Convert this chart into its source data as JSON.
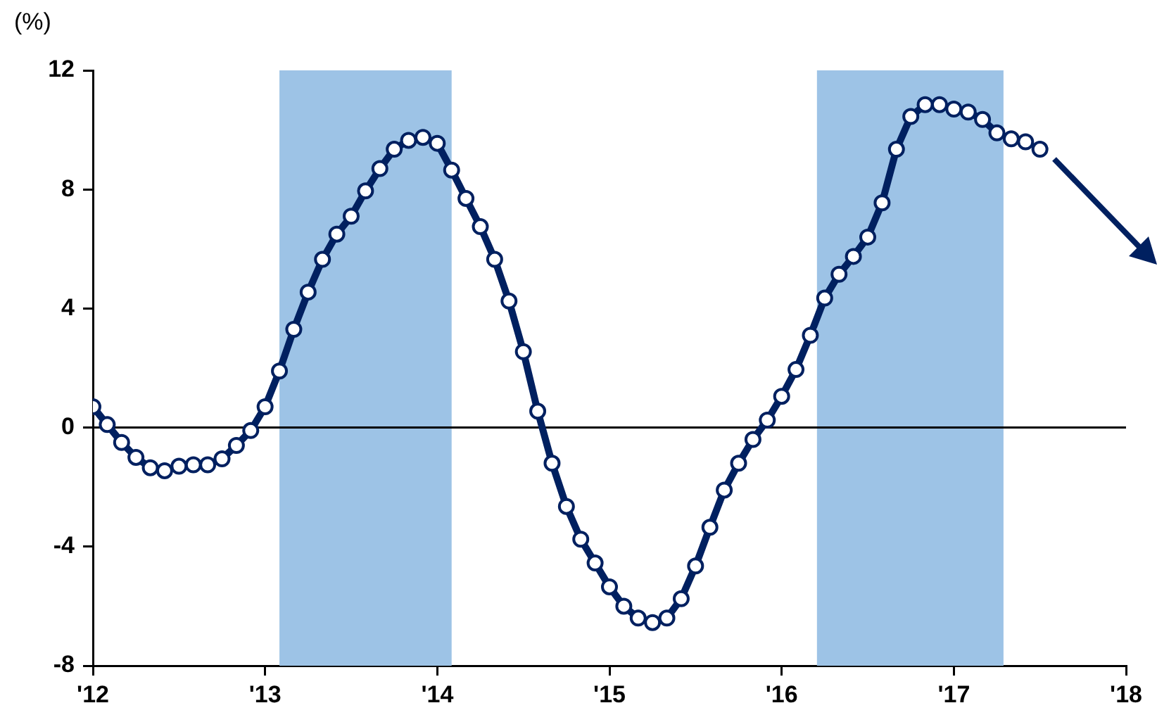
{
  "chart_data": {
    "type": "line",
    "ylabel": "(%)",
    "xlim": [
      "2012",
      "2018"
    ],
    "xticks": [
      {
        "value": "2012",
        "label": "'12"
      },
      {
        "value": "2013",
        "label": "'13"
      },
      {
        "value": "2014",
        "label": "'14"
      },
      {
        "value": "2015",
        "label": "'15"
      },
      {
        "value": "2016",
        "label": "'16"
      },
      {
        "value": "2017",
        "label": "'17"
      },
      {
        "value": "2018",
        "label": "'18"
      }
    ],
    "ylim": [
      -8,
      12
    ],
    "yticks": [
      -8,
      -4,
      0,
      4,
      8,
      12
    ],
    "grid": false,
    "legend": false,
    "marker": "circle",
    "line_style": "solid",
    "ref_lines": [
      {
        "axis": "y",
        "value": 0,
        "color": "#000000"
      }
    ],
    "bands": [
      {
        "axis": "x",
        "from": "2013-02",
        "to": "2014-02",
        "color": "#9dc3e6"
      },
      {
        "axis": "x",
        "from": "2016-03-15",
        "to": "2017-04-15",
        "color": "#9dc3e6"
      }
    ],
    "series": [
      {
        "type": "line",
        "color": "#002060",
        "x": [
          "2012-01",
          "2012-02",
          "2012-03",
          "2012-04",
          "2012-05",
          "2012-06",
          "2012-07",
          "2012-08",
          "2012-09",
          "2012-10",
          "2012-11",
          "2012-12",
          "2013-01",
          "2013-02",
          "2013-03",
          "2013-04",
          "2013-05",
          "2013-06",
          "2013-07",
          "2013-08",
          "2013-09",
          "2013-10",
          "2013-11",
          "2013-12",
          "2014-01",
          "2014-02",
          "2014-03",
          "2014-04",
          "2014-05",
          "2014-06",
          "2014-07",
          "2014-08",
          "2014-09",
          "2014-10",
          "2014-11",
          "2014-12",
          "2015-01",
          "2015-02",
          "2015-03",
          "2015-04",
          "2015-05",
          "2015-06",
          "2015-07",
          "2015-08",
          "2015-09",
          "2015-10",
          "2015-11",
          "2015-12",
          "2016-01",
          "2016-02",
          "2016-03",
          "2016-04",
          "2016-05",
          "2016-06",
          "2016-07",
          "2016-08",
          "2016-09",
          "2016-10",
          "2016-11",
          "2016-12",
          "2017-01",
          "2017-02",
          "2017-03",
          "2017-04"
        ],
        "values": [
          0.7,
          0.1,
          -0.5,
          -1.0,
          -1.35,
          -1.45,
          -1.3,
          -1.25,
          -1.25,
          -1.05,
          -0.6,
          -0.1,
          0.7,
          1.9,
          3.3,
          4.55,
          5.65,
          6.5,
          7.1,
          7.95,
          8.7,
          9.35,
          9.65,
          9.75,
          9.55,
          8.65,
          7.7,
          6.75,
          5.65,
          4.25,
          2.55,
          0.55,
          -1.2,
          -2.65,
          -3.75,
          -4.55,
          -5.35,
          -6.0,
          -6.4,
          -6.55,
          -6.4,
          -5.75,
          -4.65,
          -3.35,
          -2.1,
          -1.2,
          -0.4,
          0.25,
          1.05,
          1.95,
          3.1,
          4.35,
          5.15,
          5.75,
          6.4,
          7.55,
          9.35,
          10.45,
          10.85,
          10.85,
          10.7,
          10.6,
          10.35,
          9.9
        ]
      },
      {
        "type": "scatter",
        "color": "#002060",
        "x": [
          "2017-05",
          "2017-06",
          "2017-07"
        ],
        "values": [
          9.7,
          9.6,
          9.35
        ]
      }
    ]
  }
}
